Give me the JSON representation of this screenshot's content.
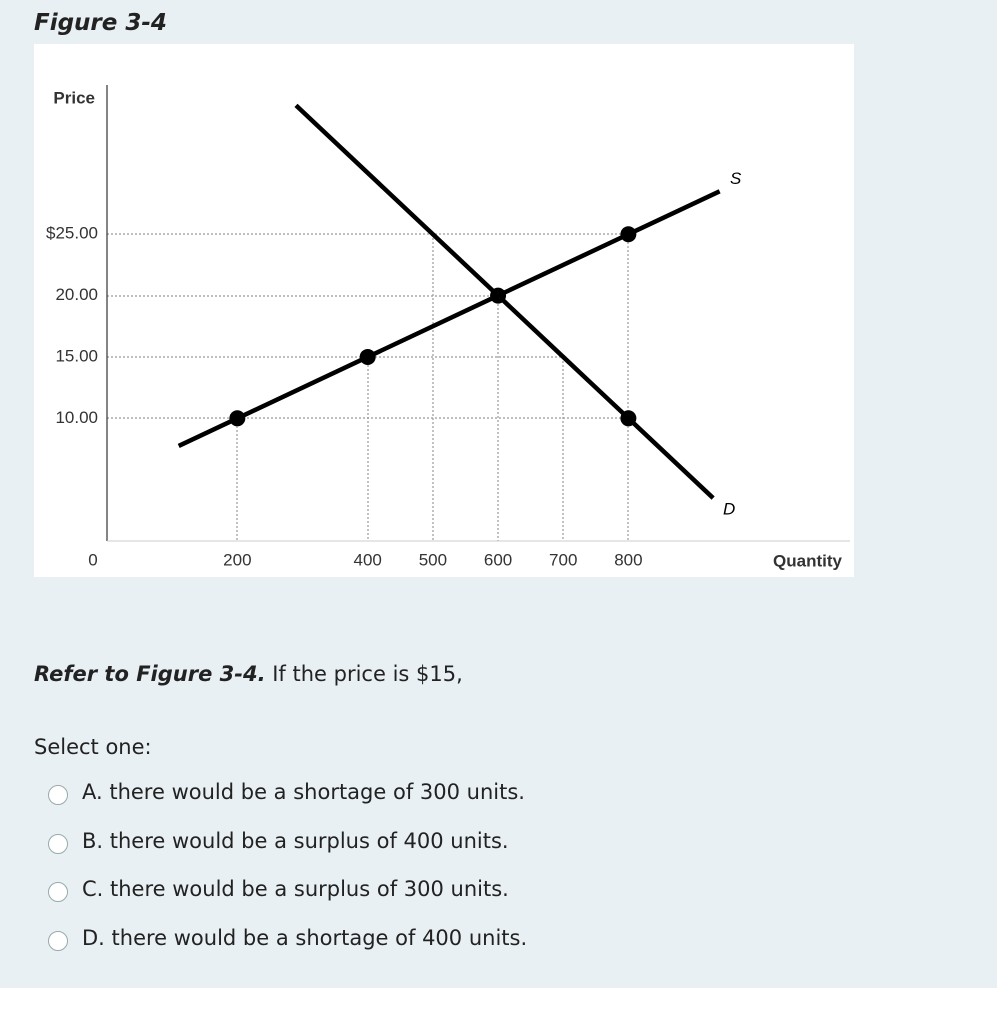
{
  "figure_title": "Figure 3-4",
  "chart_data": {
    "type": "line",
    "xlabel": "Quantity",
    "ylabel": "Price",
    "xlim": [
      0,
      1140
    ],
    "ylim": [
      0,
      37
    ],
    "xticks": [
      0,
      200,
      400,
      500,
      600,
      700,
      800
    ],
    "yticks": [
      {
        "value": 25,
        "label": "$25.00"
      },
      {
        "value": 20,
        "label": "20.00"
      },
      {
        "value": 15,
        "label": "15.00"
      },
      {
        "value": 10,
        "label": "10.00"
      }
    ],
    "series": [
      {
        "name": "S",
        "color": "#000000",
        "x": [
          110,
          200,
          400,
          600,
          800,
          940
        ],
        "values": [
          7.75,
          10,
          15,
          20,
          25,
          28.5
        ]
      },
      {
        "name": "D",
        "color": "#000000",
        "x": [
          290,
          500,
          600,
          700,
          800,
          930
        ],
        "values": [
          35.5,
          25,
          20,
          15,
          10,
          3.5
        ]
      }
    ],
    "points": {
      "x": [
        200,
        400,
        600,
        800,
        800
      ],
      "values": [
        10,
        15,
        20,
        25,
        10
      ]
    }
  },
  "question": {
    "reference": "Refer to Figure 3-4.",
    "text": "If the price is $15,"
  },
  "prompt": "Select one:",
  "options": [
    "A. there would be a shortage of 300 units.",
    "B. there would be a surplus of 400 units.",
    "C. there would be a surplus of 300 units.",
    "D. there would be a shortage of 400 units."
  ]
}
